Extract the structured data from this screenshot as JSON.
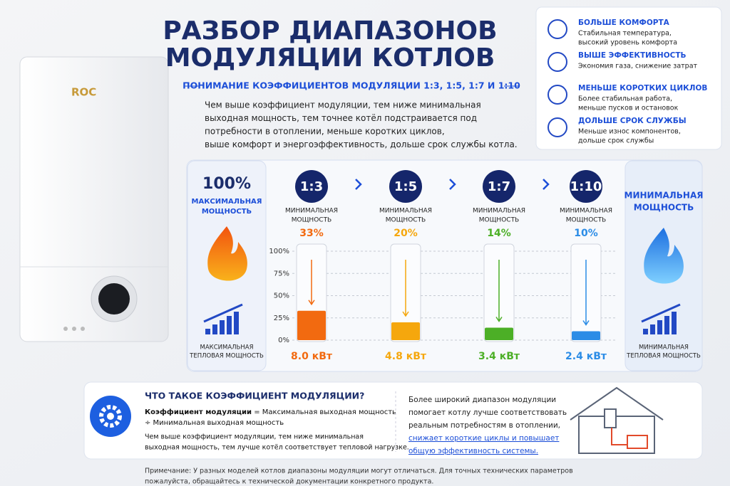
{
  "header": {
    "title_line1": "РАЗБОР ДИАПАЗОНОВ",
    "title_line2": "МОДУЛЯЦИИ  КОТЛОВ",
    "subtitle": "ПОНИМАНИЕ КОЭФФИЦИЕНТОВ МОДУЛЯЦИИ 1:3, 1:5, 1:7 И 1:10"
  },
  "intro": [
    "Чем выше коэффициент модуляции, тем ниже минимальная",
    "выходная мощность, тем точнее котёл подстраивается под",
    "потребности в отоплении, меньше коротких циклов,",
    "выше комфорт и энергоэффективность, дольше срок службы котла."
  ],
  "boiler": {
    "brand": "ROC"
  },
  "benefits": [
    {
      "title": "БОЛЬШЕ КОМФОРТА",
      "text": [
        "Стабильная температура,",
        "высокий уровень комфорта"
      ]
    },
    {
      "title": "ВЫШЕ ЭФФЕКТИВНОСТЬ",
      "text": [
        "Экономия газа, снижение затрат"
      ]
    },
    {
      "title": "МЕНЬШЕ КОРОТКИХ ЦИКЛОВ",
      "text": [
        "Более стабильная работа,",
        "меньше пусков и остановок"
      ]
    },
    {
      "title": "ДОЛЬШЕ СРОК СЛУЖБЫ",
      "text": [
        "Меньше износ компонентов,",
        "дольше срок службы"
      ]
    }
  ],
  "left_panel": {
    "value": "100%",
    "label": [
      "МАКСИМАЛЬНАЯ",
      "МОЩНОСТЬ"
    ],
    "caption": [
      "МАКСИМАЛЬНАЯ",
      "ТЕПЛОВАЯ МОЩНОСТЬ"
    ]
  },
  "right_panel": {
    "label": [
      "МИНИМАЛЬНАЯ",
      "МОЩНОСТЬ"
    ],
    "caption": [
      "МИНИМАЛЬНАЯ",
      "ТЕПЛОВАЯ МОЩНОСТЬ"
    ]
  },
  "chart_data": {
    "type": "bar",
    "categories": [
      "1:3",
      "1:5",
      "1:7",
      "1:10"
    ],
    "category_caption": [
      "МИНИМАЛЬНАЯ",
      "МОЩНОСТЬ"
    ],
    "values": [
      33,
      20,
      14,
      10
    ],
    "value_labels": [
      "33%",
      "20%",
      "14%",
      "10%"
    ],
    "power_labels": [
      "8.0 кВт",
      "4.8 кВт",
      "3.4 кВт",
      "2.4 кВт"
    ],
    "colors": [
      "#f26a10",
      "#f5a70d",
      "#4caf26",
      "#2b8ce6"
    ],
    "ylim": [
      0,
      100
    ],
    "yticks": [
      {
        "value": 0,
        "label": "0%"
      },
      {
        "value": 25,
        "label": "25%"
      },
      {
        "value": 50,
        "label": "50%"
      },
      {
        "value": 75,
        "label": "75%"
      },
      {
        "value": 100,
        "label": "100%"
      }
    ],
    "grid": true
  },
  "info": {
    "title": "ЧТО ТАКОЕ КОЭФФИЦИЕНТ МОДУЛЯЦИИ?",
    "formula_term": "Коэффициент модуляции",
    "formula_rest": "= Максимальная выходная мощность",
    "formula_line2": "÷ Минимальная выходная мощность",
    "text": [
      "Чем выше коэффициент модуляции, тем ниже минимальная",
      "выходная мощность, тем лучше котёл соответствует тепловой нагрузке."
    ],
    "side_text": [
      "Более широкий диапазон модуляции",
      "помогает котлу лучше соответствовать",
      "реальным потребностям в отоплении,"
    ],
    "side_highlight": [
      "снижает короткие циклы и повышает",
      "общую эффективность системы."
    ]
  },
  "note": [
    "Примечание: У разных моделей котлов диапазоны модуляции могут отличаться. Для точных технических параметров",
    "пожалуйста, обращайтесь к технической документации конкретного продукта."
  ]
}
